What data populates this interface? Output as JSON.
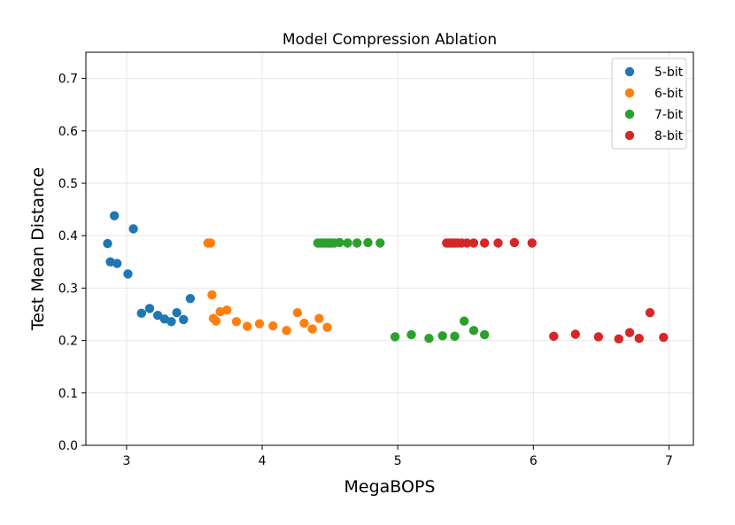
{
  "chart_data": {
    "type": "scatter",
    "title": "Model Compression Ablation",
    "xlabel": "MegaBOPS",
    "ylabel": "Test Mean Distance",
    "xlim": [
      2.7,
      7.18
    ],
    "ylim": [
      0.0,
      0.75
    ],
    "xticks": [
      3,
      4,
      5,
      6,
      7
    ],
    "yticks": [
      0.0,
      0.1,
      0.2,
      0.3,
      0.4,
      0.5,
      0.6,
      0.7
    ],
    "xtick_labels": [
      "3",
      "4",
      "5",
      "6",
      "7"
    ],
    "ytick_labels": [
      "0.0",
      "0.1",
      "0.2",
      "0.3",
      "0.4",
      "0.5",
      "0.6",
      "0.7"
    ],
    "grid": true,
    "legend_position": "top-right",
    "series": [
      {
        "name": "5-bit",
        "color": "#1f77b4",
        "points": [
          [
            2.86,
            0.385
          ],
          [
            2.88,
            0.35
          ],
          [
            2.91,
            0.438
          ],
          [
            2.93,
            0.347
          ],
          [
            3.01,
            0.327
          ],
          [
            3.05,
            0.413
          ],
          [
            3.11,
            0.252
          ],
          [
            3.17,
            0.261
          ],
          [
            3.23,
            0.248
          ],
          [
            3.28,
            0.241
          ],
          [
            3.33,
            0.236
          ],
          [
            3.37,
            0.253
          ],
          [
            3.42,
            0.24
          ],
          [
            3.47,
            0.28
          ]
        ]
      },
      {
        "name": "6-bit",
        "color": "#ff7f0e",
        "points": [
          [
            3.6,
            0.386
          ],
          [
            3.62,
            0.386
          ],
          [
            3.63,
            0.287
          ],
          [
            3.64,
            0.242
          ],
          [
            3.66,
            0.237
          ],
          [
            3.69,
            0.255
          ],
          [
            3.74,
            0.258
          ],
          [
            3.81,
            0.236
          ],
          [
            3.89,
            0.227
          ],
          [
            3.98,
            0.232
          ],
          [
            4.08,
            0.228
          ],
          [
            4.18,
            0.219
          ],
          [
            4.26,
            0.253
          ],
          [
            4.31,
            0.233
          ],
          [
            4.37,
            0.222
          ],
          [
            4.42,
            0.242
          ],
          [
            4.48,
            0.225
          ]
        ]
      },
      {
        "name": "7-bit",
        "color": "#2ca02c",
        "points": [
          [
            4.41,
            0.386
          ],
          [
            4.43,
            0.386
          ],
          [
            4.45,
            0.386
          ],
          [
            4.47,
            0.386
          ],
          [
            4.49,
            0.386
          ],
          [
            4.51,
            0.386
          ],
          [
            4.53,
            0.386
          ],
          [
            4.57,
            0.387
          ],
          [
            4.63,
            0.386
          ],
          [
            4.7,
            0.386
          ],
          [
            4.78,
            0.387
          ],
          [
            4.87,
            0.386
          ],
          [
            4.98,
            0.207
          ],
          [
            5.1,
            0.211
          ],
          [
            5.23,
            0.204
          ],
          [
            5.33,
            0.209
          ],
          [
            5.42,
            0.208
          ],
          [
            5.49,
            0.237
          ],
          [
            5.56,
            0.219
          ],
          [
            5.64,
            0.211
          ]
        ]
      },
      {
        "name": "8-bit",
        "color": "#d62728",
        "points": [
          [
            5.36,
            0.386
          ],
          [
            5.38,
            0.386
          ],
          [
            5.4,
            0.386
          ],
          [
            5.42,
            0.386
          ],
          [
            5.44,
            0.386
          ],
          [
            5.47,
            0.386
          ],
          [
            5.51,
            0.386
          ],
          [
            5.56,
            0.386
          ],
          [
            5.64,
            0.386
          ],
          [
            5.74,
            0.386
          ],
          [
            5.86,
            0.387
          ],
          [
            5.99,
            0.386
          ],
          [
            6.15,
            0.208
          ],
          [
            6.31,
            0.212
          ],
          [
            6.48,
            0.207
          ],
          [
            6.63,
            0.203
          ],
          [
            6.71,
            0.215
          ],
          [
            6.78,
            0.204
          ],
          [
            6.86,
            0.253
          ],
          [
            6.96,
            0.206
          ]
        ]
      }
    ]
  }
}
